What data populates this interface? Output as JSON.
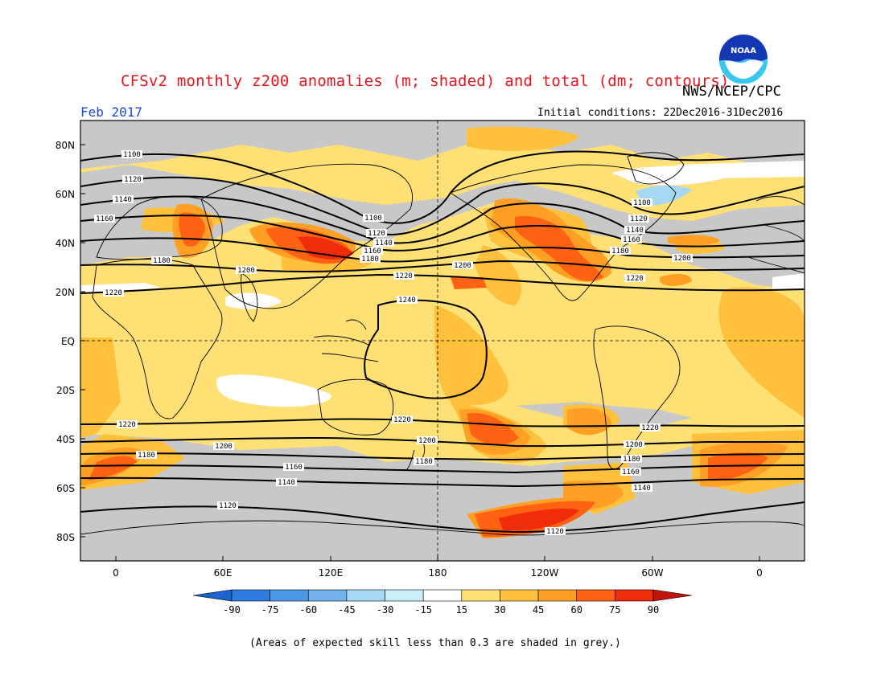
{
  "title": "CFSv2 monthly z200 anomalies (m; shaded) and total (dm; contours)",
  "agency": "NWS/NCEP/CPC",
  "logo_text": "NOAA",
  "month": "Feb 2017",
  "initial_conditions": "Initial conditions: 22Dec2016-31Dec2016",
  "lat_labels": [
    "80N",
    "60N",
    "40N",
    "20N",
    "EQ",
    "20S",
    "40S",
    "60S",
    "80S"
  ],
  "lon_labels": [
    "0",
    "60E",
    "120E",
    "180",
    "120W",
    "60W",
    "0"
  ],
  "colorbar": {
    "labels": [
      "-90",
      "-75",
      "-60",
      "-45",
      "-30",
      "-15",
      "15",
      "30",
      "45",
      "60",
      "75",
      "90"
    ],
    "colors": [
      "#1c64d2",
      "#2d7ce0",
      "#4c98e6",
      "#74b2ec",
      "#a5d8f4",
      "#c9f0f8",
      "#ffffff",
      "#ffe074",
      "#ffc03c",
      "#ffa024",
      "#ff6212",
      "#f02c0a",
      "#c01408"
    ]
  },
  "skill_grey": "#c8c8c8",
  "note": "(Areas of expected skill less than 0.3 are shaded in grey.)",
  "contour_labels": {
    "1100": "1100",
    "1120": "1120",
    "1140": "1140",
    "1160": "1160",
    "1180": "1180",
    "1200": "1200",
    "1220": "1220",
    "1240": "1240"
  }
}
